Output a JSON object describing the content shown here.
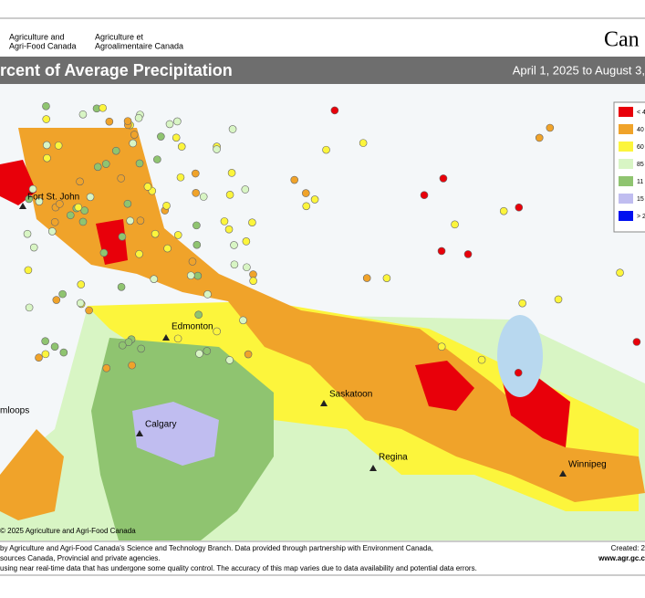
{
  "header": {
    "agency_en": [
      "Agriculture and",
      "Agri-Food Canada"
    ],
    "agency_fr": [
      "Agriculture et",
      "Agroalimentaire Canada"
    ],
    "wordmark": "Can"
  },
  "title": "rcent of Average Precipitation",
  "period": "April 1, 2025 to August 3,",
  "legend": [
    "< 4",
    "40",
    "60",
    "85",
    "11",
    "15",
    "> 2"
  ],
  "cities": [
    "Fort St. John",
    "Edmonton",
    "Calgary",
    "Saskatoon",
    "Regina",
    "Winnipeg",
    "mloops"
  ],
  "copyright": "© 2025 Agriculture and Agri-Food Canada",
  "footer": {
    "lines": [
      "by Agriculture and Agri-Food Canada's Science and Technology Branch. Data provided through partnership with Environment Canada,",
      "sources Canada, Provincial and private agencies.",
      "using near real-time data that has undergone some quality control. The accuracy of this map varies due to data availability and potential data errors."
    ],
    "created": "Created: 2",
    "url": "www.agr.gc.c"
  }
}
